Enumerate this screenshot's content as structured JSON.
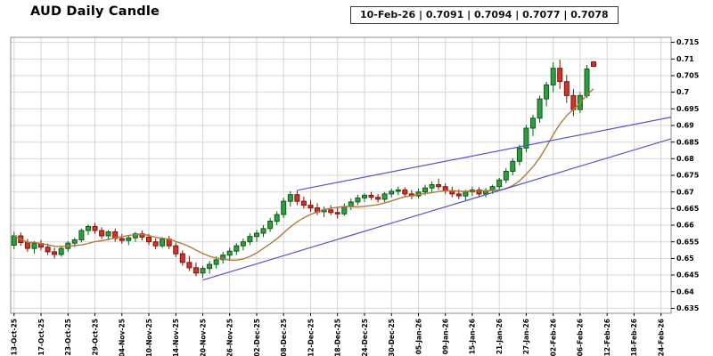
{
  "header": {
    "title": "AUD Daily Candle",
    "quote_display": "10-Feb-26 | 0.7091 | 0.7094 | 0.7077 | 0.7078"
  },
  "chart_data": {
    "type": "candlestick",
    "title": "AUD Daily Candle",
    "xlabel": "",
    "ylabel": "",
    "grid": true,
    "legend": false,
    "last_quote": {
      "date": "10-Feb-26",
      "open": 0.7091,
      "high": 0.7094,
      "low": 0.7077,
      "close": 0.7078
    },
    "total_slots": 98,
    "y_axis": {
      "side": "right",
      "min": 0.635,
      "max": 0.715,
      "step": 0.005,
      "plot_min": 0.6335,
      "plot_max": 0.7165,
      "ticks": [
        {
          "v": 0.715,
          "label": "0.715"
        },
        {
          "v": 0.71,
          "label": "0.71"
        },
        {
          "v": 0.705,
          "label": "0.705"
        },
        {
          "v": 0.7,
          "label": "0.7"
        },
        {
          "v": 0.695,
          "label": "0.695"
        },
        {
          "v": 0.69,
          "label": "0.69"
        },
        {
          "v": 0.685,
          "label": "0.685"
        },
        {
          "v": 0.68,
          "label": "0.68"
        },
        {
          "v": 0.675,
          "label": "0.675"
        },
        {
          "v": 0.67,
          "label": "0.67"
        },
        {
          "v": 0.665,
          "label": "0.665"
        },
        {
          "v": 0.66,
          "label": "0.66"
        },
        {
          "v": 0.655,
          "label": "0.655"
        },
        {
          "v": 0.65,
          "label": "0.65"
        },
        {
          "v": 0.645,
          "label": "0.645"
        },
        {
          "v": 0.64,
          "label": "0.64"
        },
        {
          "v": 0.635,
          "label": "0.635"
        }
      ]
    },
    "x_axis": {
      "ticks": [
        {
          "i": 0,
          "label": "13-Oct-25"
        },
        {
          "i": 4,
          "label": "17-Oct-25"
        },
        {
          "i": 8,
          "label": "23-Oct-25"
        },
        {
          "i": 12,
          "label": "29-Oct-25"
        },
        {
          "i": 16,
          "label": "04-Nov-25"
        },
        {
          "i": 20,
          "label": "10-Nov-25"
        },
        {
          "i": 24,
          "label": "14-Nov-25"
        },
        {
          "i": 28,
          "label": "20-Nov-25"
        },
        {
          "i": 32,
          "label": "26-Nov-25"
        },
        {
          "i": 36,
          "label": "02-Dec-25"
        },
        {
          "i": 40,
          "label": "08-Dec-25"
        },
        {
          "i": 44,
          "label": "12-Dec-25"
        },
        {
          "i": 48,
          "label": "18-Dec-25"
        },
        {
          "i": 52,
          "label": "24-Dec-25"
        },
        {
          "i": 56,
          "label": "30-Dec-25"
        },
        {
          "i": 60,
          "label": "05-Jan-26"
        },
        {
          "i": 64,
          "label": "09-Jan-26"
        },
        {
          "i": 68,
          "label": "15-Jan-26"
        },
        {
          "i": 72,
          "label": "21-Jan-26"
        },
        {
          "i": 76,
          "label": "27-Jan-26"
        },
        {
          "i": 80,
          "label": "02-Feb-26"
        },
        {
          "i": 84,
          "label": "06-Feb-26"
        },
        {
          "i": 88,
          "label": "12-Feb-26"
        },
        {
          "i": 92,
          "label": "18-Feb-26"
        },
        {
          "i": 96,
          "label": "24-Feb-26"
        }
      ]
    },
    "candles": [
      {
        "d": "13-Oct-25",
        "o": 0.654,
        "h": 0.658,
        "l": 0.6528,
        "c": 0.6568
      },
      {
        "d": "14-Oct-25",
        "o": 0.6568,
        "h": 0.6578,
        "l": 0.6538,
        "c": 0.6548
      },
      {
        "d": "15-Oct-25",
        "o": 0.6548,
        "h": 0.6558,
        "l": 0.652,
        "c": 0.653
      },
      {
        "d": "16-Oct-25",
        "o": 0.653,
        "h": 0.6552,
        "l": 0.6515,
        "c": 0.6545
      },
      {
        "d": "17-Oct-25",
        "o": 0.6545,
        "h": 0.6556,
        "l": 0.6524,
        "c": 0.6534
      },
      {
        "d": "20-Oct-25",
        "o": 0.6534,
        "h": 0.6545,
        "l": 0.651,
        "c": 0.652
      },
      {
        "d": "21-Oct-25",
        "o": 0.652,
        "h": 0.6532,
        "l": 0.65,
        "c": 0.6512
      },
      {
        "d": "22-Oct-25",
        "o": 0.6512,
        "h": 0.6536,
        "l": 0.6505,
        "c": 0.653
      },
      {
        "d": "23-Oct-25",
        "o": 0.653,
        "h": 0.6552,
        "l": 0.652,
        "c": 0.6546
      },
      {
        "d": "24-Oct-25",
        "o": 0.6546,
        "h": 0.6562,
        "l": 0.6534,
        "c": 0.6556
      },
      {
        "d": "27-Oct-25",
        "o": 0.6556,
        "h": 0.659,
        "l": 0.6548,
        "c": 0.6584
      },
      {
        "d": "28-Oct-25",
        "o": 0.6584,
        "h": 0.6602,
        "l": 0.657,
        "c": 0.6596
      },
      {
        "d": "29-Oct-25",
        "o": 0.6596,
        "h": 0.6606,
        "l": 0.6574,
        "c": 0.6584
      },
      {
        "d": "30-Oct-25",
        "o": 0.6584,
        "h": 0.6594,
        "l": 0.6558,
        "c": 0.6568
      },
      {
        "d": "31-Oct-25",
        "o": 0.6568,
        "h": 0.6586,
        "l": 0.6554,
        "c": 0.658
      },
      {
        "d": "03-Nov-25",
        "o": 0.658,
        "h": 0.659,
        "l": 0.655,
        "c": 0.656
      },
      {
        "d": "04-Nov-25",
        "o": 0.656,
        "h": 0.6574,
        "l": 0.6544,
        "c": 0.6554
      },
      {
        "d": "05-Nov-25",
        "o": 0.6554,
        "h": 0.657,
        "l": 0.654,
        "c": 0.6562
      },
      {
        "d": "06-Nov-25",
        "o": 0.6562,
        "h": 0.658,
        "l": 0.655,
        "c": 0.6574
      },
      {
        "d": "07-Nov-25",
        "o": 0.6574,
        "h": 0.6584,
        "l": 0.6554,
        "c": 0.6564
      },
      {
        "d": "10-Nov-25",
        "o": 0.6564,
        "h": 0.6574,
        "l": 0.654,
        "c": 0.655
      },
      {
        "d": "11-Nov-25",
        "o": 0.655,
        "h": 0.656,
        "l": 0.6528,
        "c": 0.6538
      },
      {
        "d": "12-Nov-25",
        "o": 0.6538,
        "h": 0.6564,
        "l": 0.6532,
        "c": 0.6558
      },
      {
        "d": "13-Nov-25",
        "o": 0.6558,
        "h": 0.6568,
        "l": 0.6528,
        "c": 0.6538
      },
      {
        "d": "14-Nov-25",
        "o": 0.6538,
        "h": 0.6548,
        "l": 0.6504,
        "c": 0.6514
      },
      {
        "d": "17-Nov-25",
        "o": 0.6514,
        "h": 0.6524,
        "l": 0.6478,
        "c": 0.6488
      },
      {
        "d": "18-Nov-25",
        "o": 0.6488,
        "h": 0.6508,
        "l": 0.6462,
        "c": 0.6472
      },
      {
        "d": "19-Nov-25",
        "o": 0.6472,
        "h": 0.6488,
        "l": 0.6446,
        "c": 0.6456
      },
      {
        "d": "20-Nov-25",
        "o": 0.6456,
        "h": 0.6478,
        "l": 0.6442,
        "c": 0.647
      },
      {
        "d": "21-Nov-25",
        "o": 0.647,
        "h": 0.6492,
        "l": 0.6454,
        "c": 0.6482
      },
      {
        "d": "24-Nov-25",
        "o": 0.6482,
        "h": 0.6506,
        "l": 0.647,
        "c": 0.6496
      },
      {
        "d": "25-Nov-25",
        "o": 0.6496,
        "h": 0.652,
        "l": 0.6484,
        "c": 0.651
      },
      {
        "d": "26-Nov-25",
        "o": 0.651,
        "h": 0.6532,
        "l": 0.6496,
        "c": 0.6522
      },
      {
        "d": "27-Nov-25",
        "o": 0.6522,
        "h": 0.6546,
        "l": 0.651,
        "c": 0.6538
      },
      {
        "d": "28-Nov-25",
        "o": 0.6538,
        "h": 0.656,
        "l": 0.6524,
        "c": 0.655
      },
      {
        "d": "01-Dec-25",
        "o": 0.655,
        "h": 0.6576,
        "l": 0.654,
        "c": 0.6566
      },
      {
        "d": "02-Dec-25",
        "o": 0.6566,
        "h": 0.6586,
        "l": 0.655,
        "c": 0.6576
      },
      {
        "d": "03-Dec-25",
        "o": 0.6576,
        "h": 0.66,
        "l": 0.6564,
        "c": 0.659
      },
      {
        "d": "04-Dec-25",
        "o": 0.659,
        "h": 0.6622,
        "l": 0.658,
        "c": 0.6612
      },
      {
        "d": "05-Dec-25",
        "o": 0.6612,
        "h": 0.6642,
        "l": 0.66,
        "c": 0.6632
      },
      {
        "d": "08-Dec-25",
        "o": 0.6632,
        "h": 0.6682,
        "l": 0.6622,
        "c": 0.6672
      },
      {
        "d": "09-Dec-25",
        "o": 0.6672,
        "h": 0.6702,
        "l": 0.6656,
        "c": 0.6692
      },
      {
        "d": "10-Dec-25",
        "o": 0.6692,
        "h": 0.6704,
        "l": 0.666,
        "c": 0.6672
      },
      {
        "d": "11-Dec-25",
        "o": 0.6672,
        "h": 0.6686,
        "l": 0.665,
        "c": 0.666
      },
      {
        "d": "12-Dec-25",
        "o": 0.666,
        "h": 0.6676,
        "l": 0.664,
        "c": 0.6652
      },
      {
        "d": "15-Dec-25",
        "o": 0.6652,
        "h": 0.6666,
        "l": 0.663,
        "c": 0.664
      },
      {
        "d": "16-Dec-25",
        "o": 0.664,
        "h": 0.6656,
        "l": 0.6624,
        "c": 0.6646
      },
      {
        "d": "17-Dec-25",
        "o": 0.6646,
        "h": 0.666,
        "l": 0.663,
        "c": 0.6638
      },
      {
        "d": "18-Dec-25",
        "o": 0.6638,
        "h": 0.6654,
        "l": 0.662,
        "c": 0.6634
      },
      {
        "d": "19-Dec-25",
        "o": 0.6634,
        "h": 0.6666,
        "l": 0.6628,
        "c": 0.6656
      },
      {
        "d": "22-Dec-25",
        "o": 0.6656,
        "h": 0.668,
        "l": 0.6646,
        "c": 0.667
      },
      {
        "d": "23-Dec-25",
        "o": 0.667,
        "h": 0.6692,
        "l": 0.666,
        "c": 0.6682
      },
      {
        "d": "24-Dec-25",
        "o": 0.6682,
        "h": 0.6696,
        "l": 0.667,
        "c": 0.669
      },
      {
        "d": "25-Dec-25",
        "o": 0.669,
        "h": 0.67,
        "l": 0.6676,
        "c": 0.6684
      },
      {
        "d": "26-Dec-25",
        "o": 0.6684,
        "h": 0.6694,
        "l": 0.6668,
        "c": 0.6678
      },
      {
        "d": "29-Dec-25",
        "o": 0.6678,
        "h": 0.67,
        "l": 0.667,
        "c": 0.6694
      },
      {
        "d": "30-Dec-25",
        "o": 0.6694,
        "h": 0.671,
        "l": 0.6684,
        "c": 0.6702
      },
      {
        "d": "31-Dec-25",
        "o": 0.6702,
        "h": 0.6716,
        "l": 0.669,
        "c": 0.6706
      },
      {
        "d": "01-Jan-26",
        "o": 0.6706,
        "h": 0.6714,
        "l": 0.6686,
        "c": 0.6694
      },
      {
        "d": "02-Jan-26",
        "o": 0.6694,
        "h": 0.6706,
        "l": 0.6678,
        "c": 0.6688
      },
      {
        "d": "05-Jan-26",
        "o": 0.6688,
        "h": 0.671,
        "l": 0.668,
        "c": 0.67
      },
      {
        "d": "06-Jan-26",
        "o": 0.67,
        "h": 0.6722,
        "l": 0.669,
        "c": 0.6712
      },
      {
        "d": "07-Jan-26",
        "o": 0.6712,
        "h": 0.6732,
        "l": 0.67,
        "c": 0.6722
      },
      {
        "d": "08-Jan-26",
        "o": 0.6722,
        "h": 0.674,
        "l": 0.6706,
        "c": 0.6716
      },
      {
        "d": "09-Jan-26",
        "o": 0.6716,
        "h": 0.6726,
        "l": 0.6694,
        "c": 0.6704
      },
      {
        "d": "12-Jan-26",
        "o": 0.6704,
        "h": 0.6716,
        "l": 0.6684,
        "c": 0.6694
      },
      {
        "d": "13-Jan-26",
        "o": 0.6694,
        "h": 0.6708,
        "l": 0.6678,
        "c": 0.6688
      },
      {
        "d": "14-Jan-26",
        "o": 0.6688,
        "h": 0.6706,
        "l": 0.6674,
        "c": 0.67
      },
      {
        "d": "15-Jan-26",
        "o": 0.67,
        "h": 0.6716,
        "l": 0.6688,
        "c": 0.6706
      },
      {
        "d": "16-Jan-26",
        "o": 0.6706,
        "h": 0.6714,
        "l": 0.6684,
        "c": 0.6694
      },
      {
        "d": "19-Jan-26",
        "o": 0.6694,
        "h": 0.6712,
        "l": 0.6684,
        "c": 0.6704
      },
      {
        "d": "20-Jan-26",
        "o": 0.6704,
        "h": 0.6722,
        "l": 0.6694,
        "c": 0.6716
      },
      {
        "d": "21-Jan-26",
        "o": 0.6716,
        "h": 0.6742,
        "l": 0.6706,
        "c": 0.6736
      },
      {
        "d": "22-Jan-26",
        "o": 0.6736,
        "h": 0.6772,
        "l": 0.6726,
        "c": 0.6762
      },
      {
        "d": "23-Jan-26",
        "o": 0.6762,
        "h": 0.6802,
        "l": 0.675,
        "c": 0.6792
      },
      {
        "d": "26-Jan-26",
        "o": 0.6792,
        "h": 0.6842,
        "l": 0.678,
        "c": 0.6832
      },
      {
        "d": "27-Jan-26",
        "o": 0.6832,
        "h": 0.6902,
        "l": 0.682,
        "c": 0.6892
      },
      {
        "d": "28-Jan-26",
        "o": 0.6892,
        "h": 0.6932,
        "l": 0.6868,
        "c": 0.6922
      },
      {
        "d": "29-Jan-26",
        "o": 0.6922,
        "h": 0.699,
        "l": 0.6908,
        "c": 0.698
      },
      {
        "d": "30-Jan-26",
        "o": 0.698,
        "h": 0.7032,
        "l": 0.6958,
        "c": 0.7022
      },
      {
        "d": "02-Feb-26",
        "o": 0.7022,
        "h": 0.709,
        "l": 0.7,
        "c": 0.7072
      },
      {
        "d": "03-Feb-26",
        "o": 0.7072,
        "h": 0.7098,
        "l": 0.701,
        "c": 0.7032
      },
      {
        "d": "04-Feb-26",
        "o": 0.7032,
        "h": 0.7052,
        "l": 0.6968,
        "c": 0.699
      },
      {
        "d": "05-Feb-26",
        "o": 0.699,
        "h": 0.701,
        "l": 0.6928,
        "c": 0.6948
      },
      {
        "d": "06-Feb-26",
        "o": 0.6948,
        "h": 0.7,
        "l": 0.6938,
        "c": 0.699
      },
      {
        "d": "09-Feb-26",
        "o": 0.699,
        "h": 0.7082,
        "l": 0.6982,
        "c": 0.707
      },
      {
        "d": "10-Feb-26",
        "o": 0.7091,
        "h": 0.7094,
        "l": 0.7077,
        "c": 0.7078
      }
    ],
    "overlays": {
      "moving_average": {
        "type": "sma",
        "period": 10,
        "color": "#b07a3c"
      },
      "trendlines": [
        {
          "name": "support",
          "i1": 28,
          "v1": 0.6435,
          "i2": 97.5,
          "v2": 0.686,
          "color": "#5a55cc"
        },
        {
          "name": "resistance",
          "i1": 42,
          "v1": 0.6705,
          "i2": 97.5,
          "v2": 0.6925,
          "color": "#5a55cc"
        }
      ]
    },
    "colors": {
      "up_fill": "#2f9e41",
      "up_border": "#0b5b16",
      "down_fill": "#d33227",
      "down_border": "#7e120b",
      "grid": "#d6d6d6",
      "border": "#8c8c8c",
      "axis_text": "#000000"
    }
  }
}
